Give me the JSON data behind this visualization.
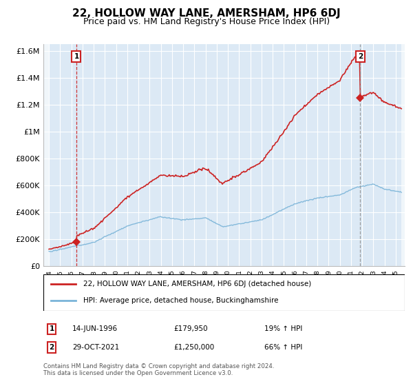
{
  "title": "22, HOLLOW WAY LANE, AMERSHAM, HP6 6DJ",
  "subtitle": "Price paid vs. HM Land Registry's House Price Index (HPI)",
  "title_fontsize": 11,
  "subtitle_fontsize": 9,
  "background_color": "#ffffff",
  "plot_bg_color": "#dce9f5",
  "grid_color": "#ffffff",
  "ylim": [
    0,
    1650000
  ],
  "yticks": [
    0,
    200000,
    400000,
    600000,
    800000,
    1000000,
    1200000,
    1400000,
    1600000
  ],
  "ytick_labels": [
    "£0",
    "£200K",
    "£400K",
    "£600K",
    "£800K",
    "£1M",
    "£1.2M",
    "£1.4M",
    "£1.6M"
  ],
  "xlim_start": 1993.5,
  "xlim_end": 2025.8,
  "xtick_years": [
    1994,
    1995,
    1996,
    1997,
    1998,
    1999,
    2000,
    2001,
    2002,
    2003,
    2004,
    2005,
    2006,
    2007,
    2008,
    2009,
    2010,
    2011,
    2012,
    2013,
    2014,
    2015,
    2016,
    2017,
    2018,
    2019,
    2020,
    2021,
    2022,
    2023,
    2024,
    2025
  ],
  "hpi_line_color": "#7ab4d8",
  "price_line_color": "#cc2222",
  "marker_color": "#cc2222",
  "vline1_color": "#cc2222",
  "vline2_color": "#888888",
  "sale1_year": 1996.45,
  "sale1_price": 179950,
  "sale2_year": 2021.83,
  "sale2_price": 1250000,
  "legend_label1": "22, HOLLOW WAY LANE, AMERSHAM, HP6 6DJ (detached house)",
  "legend_label2": "HPI: Average price, detached house, Buckinghamshire",
  "note1_num": "1",
  "note1_date": "14-JUN-1996",
  "note1_price": "£179,950",
  "note1_hpi": "19% ↑ HPI",
  "note2_num": "2",
  "note2_date": "29-OCT-2021",
  "note2_price": "£1,250,000",
  "note2_hpi": "66% ↑ HPI",
  "footnote": "Contains HM Land Registry data © Crown copyright and database right 2024.\nThis data is licensed under the Open Government Licence v3.0."
}
